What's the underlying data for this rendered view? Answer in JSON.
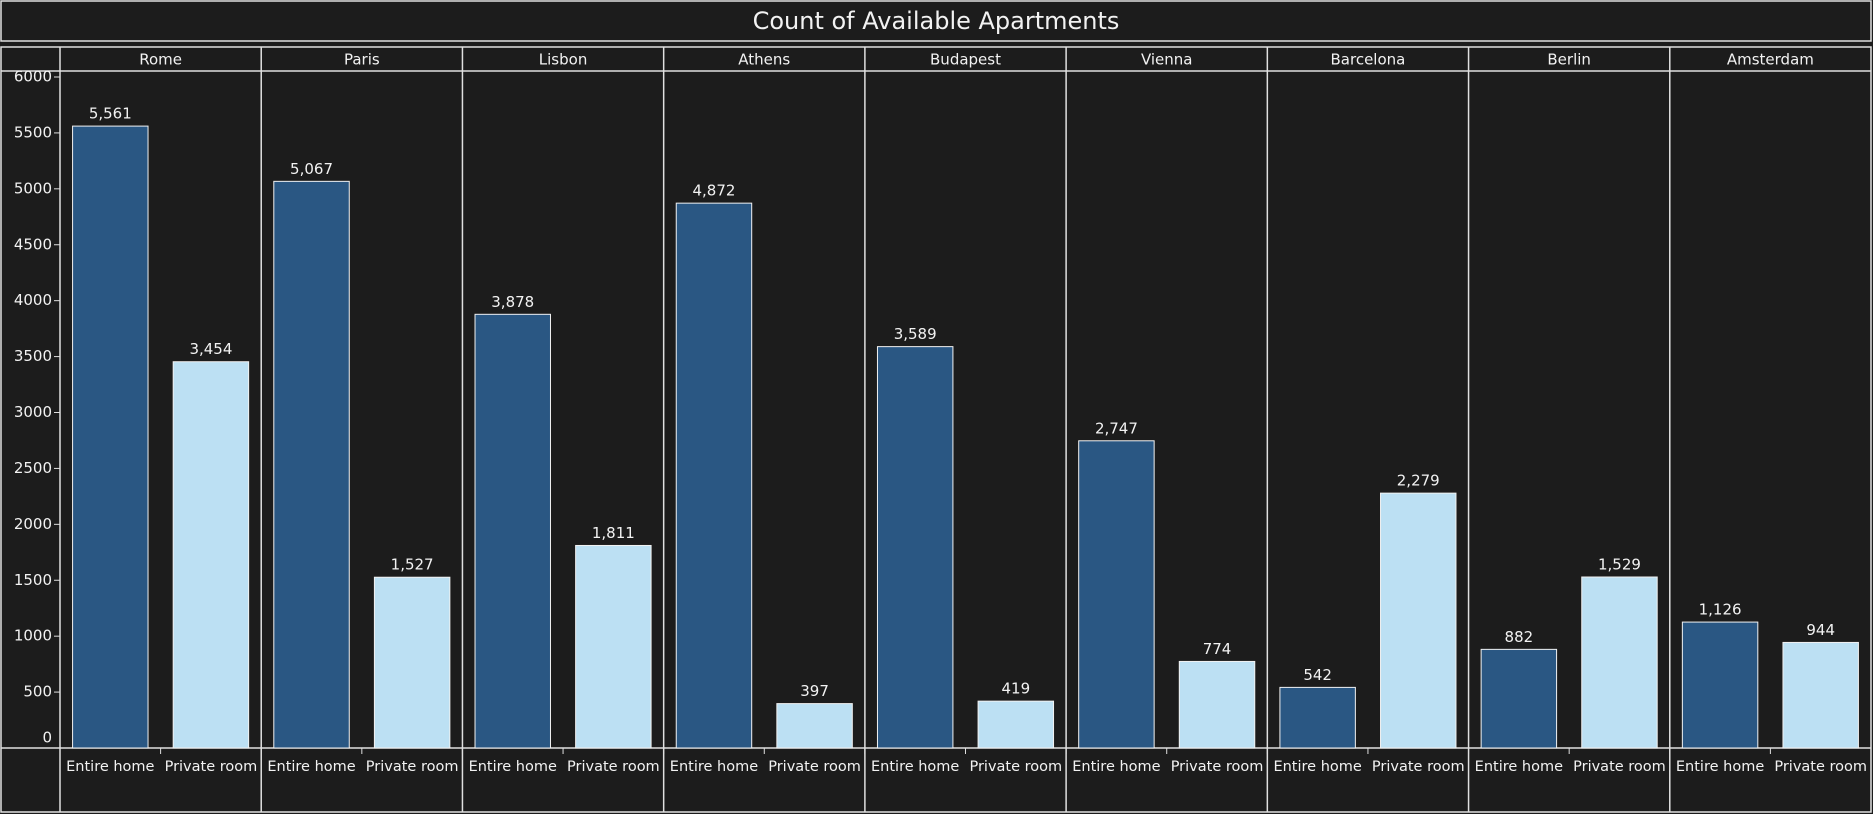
{
  "chart_data": {
    "type": "bar",
    "title": "Count of Available Apartments",
    "categories": [
      "Rome",
      "Paris",
      "Lisbon",
      "Athens",
      "Budapest",
      "Vienna",
      "Barcelona",
      "Berlin",
      "Amsterdam"
    ],
    "series": [
      {
        "name": "Entire home",
        "color": "#2a5783",
        "values": [
          5561,
          5067,
          3878,
          4872,
          3589,
          2747,
          542,
          882,
          1126
        ],
        "value_labels": [
          "5,561",
          "5,067",
          "3,878",
          "4,872",
          "3,589",
          "2,747",
          "542",
          "882",
          "1,126"
        ]
      },
      {
        "name": "Private room",
        "color": "#bce0f3",
        "values": [
          3454,
          1527,
          1811,
          397,
          419,
          774,
          2279,
          1529,
          944
        ],
        "value_labels": [
          "3,454",
          "1,527",
          "1,811",
          "397",
          "419",
          "774",
          "2,279",
          "1,529",
          "944"
        ]
      }
    ],
    "ylim": [
      0,
      6000
    ],
    "yticks": [
      0,
      500,
      1000,
      1500,
      2000,
      2500,
      3000,
      3500,
      4000,
      4500,
      5000,
      5500,
      6000
    ],
    "grid": false
  }
}
